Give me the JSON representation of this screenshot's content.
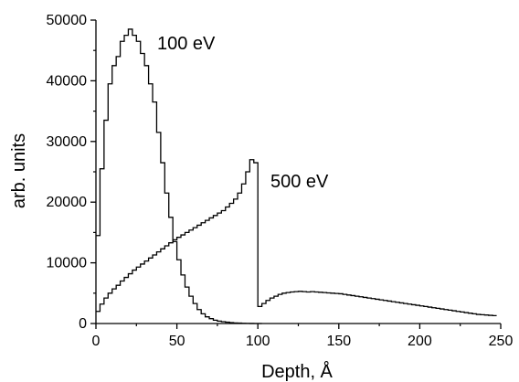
{
  "chart_data": {
    "type": "line",
    "title": "",
    "xlabel": "Depth, Å",
    "ylabel": "arb. units",
    "xlim": [
      0,
      250
    ],
    "ylim": [
      0,
      50000
    ],
    "xticks": [
      "0",
      "50",
      "100",
      "150",
      "200",
      "250"
    ],
    "yticks": [
      "0",
      "10000",
      "20000",
      "30000",
      "40000",
      "50000"
    ],
    "annotations": [
      "100 eV",
      "500 eV"
    ],
    "grid": false,
    "series": [
      {
        "step_width": 2.5,
        "x": [
          0,
          2.5,
          5,
          7.5,
          10,
          12.5,
          15,
          17.5,
          20,
          22.5,
          25,
          27.5,
          30,
          32.5,
          35,
          37.5,
          40,
          42.5,
          45,
          47.5,
          50,
          52.5,
          55,
          57.5,
          60,
          62.5,
          65,
          67.5,
          70,
          72.5,
          75,
          77.5,
          80,
          82.5,
          85,
          87.5,
          90,
          92.5,
          95,
          97.5,
          100
        ],
        "values": [
          14500,
          25500,
          33500,
          39500,
          42500,
          44000,
          46500,
          47500,
          48500,
          47500,
          46500,
          44500,
          42500,
          39500,
          36500,
          31500,
          26500,
          21500,
          17500,
          13500,
          10500,
          8000,
          6000,
          4500,
          3300,
          2300,
          1600,
          1100,
          800,
          550,
          400,
          300,
          220,
          150,
          100,
          70,
          40,
          20,
          10,
          5,
          0
        ]
      },
      {
        "step_width": 2.5,
        "x": [
          0,
          2.5,
          5,
          7.5,
          10,
          12.5,
          15,
          17.5,
          20,
          22.5,
          25,
          27.5,
          30,
          32.5,
          35,
          37.5,
          40,
          42.5,
          45,
          47.5,
          50,
          52.5,
          55,
          57.5,
          60,
          62.5,
          65,
          67.5,
          70,
          72.5,
          75,
          77.5,
          80,
          82.5,
          85,
          87.5,
          90,
          92.5,
          95,
          97.5,
          100,
          102.5,
          105,
          107.5,
          110,
          112.5,
          115,
          117.5,
          120,
          122.5,
          125,
          127.5,
          130,
          132.5,
          135,
          137.5,
          140,
          142.5,
          145,
          147.5,
          150,
          152.5,
          155,
          157.5,
          160,
          162.5,
          165,
          167.5,
          170,
          172.5,
          175,
          177.5,
          180,
          182.5,
          185,
          187.5,
          190,
          192.5,
          195,
          197.5,
          200,
          202.5,
          205,
          207.5,
          210,
          212.5,
          215,
          217.5,
          220,
          222.5,
          225,
          227.5,
          230,
          232.5,
          235,
          237.5,
          240,
          242.5,
          245
        ],
        "values": [
          2000,
          3200,
          4200,
          5000,
          5700,
          6300,
          7000,
          7600,
          8200,
          8800,
          9300,
          9800,
          10300,
          10800,
          11300,
          11800,
          12300,
          12800,
          13300,
          13800,
          14200,
          14600,
          15000,
          15400,
          15800,
          16200,
          16600,
          17000,
          17400,
          17800,
          18200,
          18600,
          19200,
          19800,
          20500,
          21500,
          23000,
          25000,
          27000,
          26500,
          2800,
          3300,
          3800,
          4200,
          4500,
          4800,
          5000,
          5100,
          5200,
          5250,
          5300,
          5250,
          5200,
          5250,
          5200,
          5150,
          5100,
          5050,
          5000,
          4950,
          4900,
          4800,
          4700,
          4600,
          4500,
          4400,
          4300,
          4200,
          4100,
          4000,
          3900,
          3800,
          3700,
          3600,
          3500,
          3400,
          3300,
          3200,
          3100,
          3000,
          2900,
          2800,
          2700,
          2600,
          2500,
          2400,
          2300,
          2200,
          2100,
          2000,
          1900,
          1800,
          1700,
          1600,
          1500,
          1450,
          1400,
          1350,
          1300
        ]
      }
    ]
  }
}
